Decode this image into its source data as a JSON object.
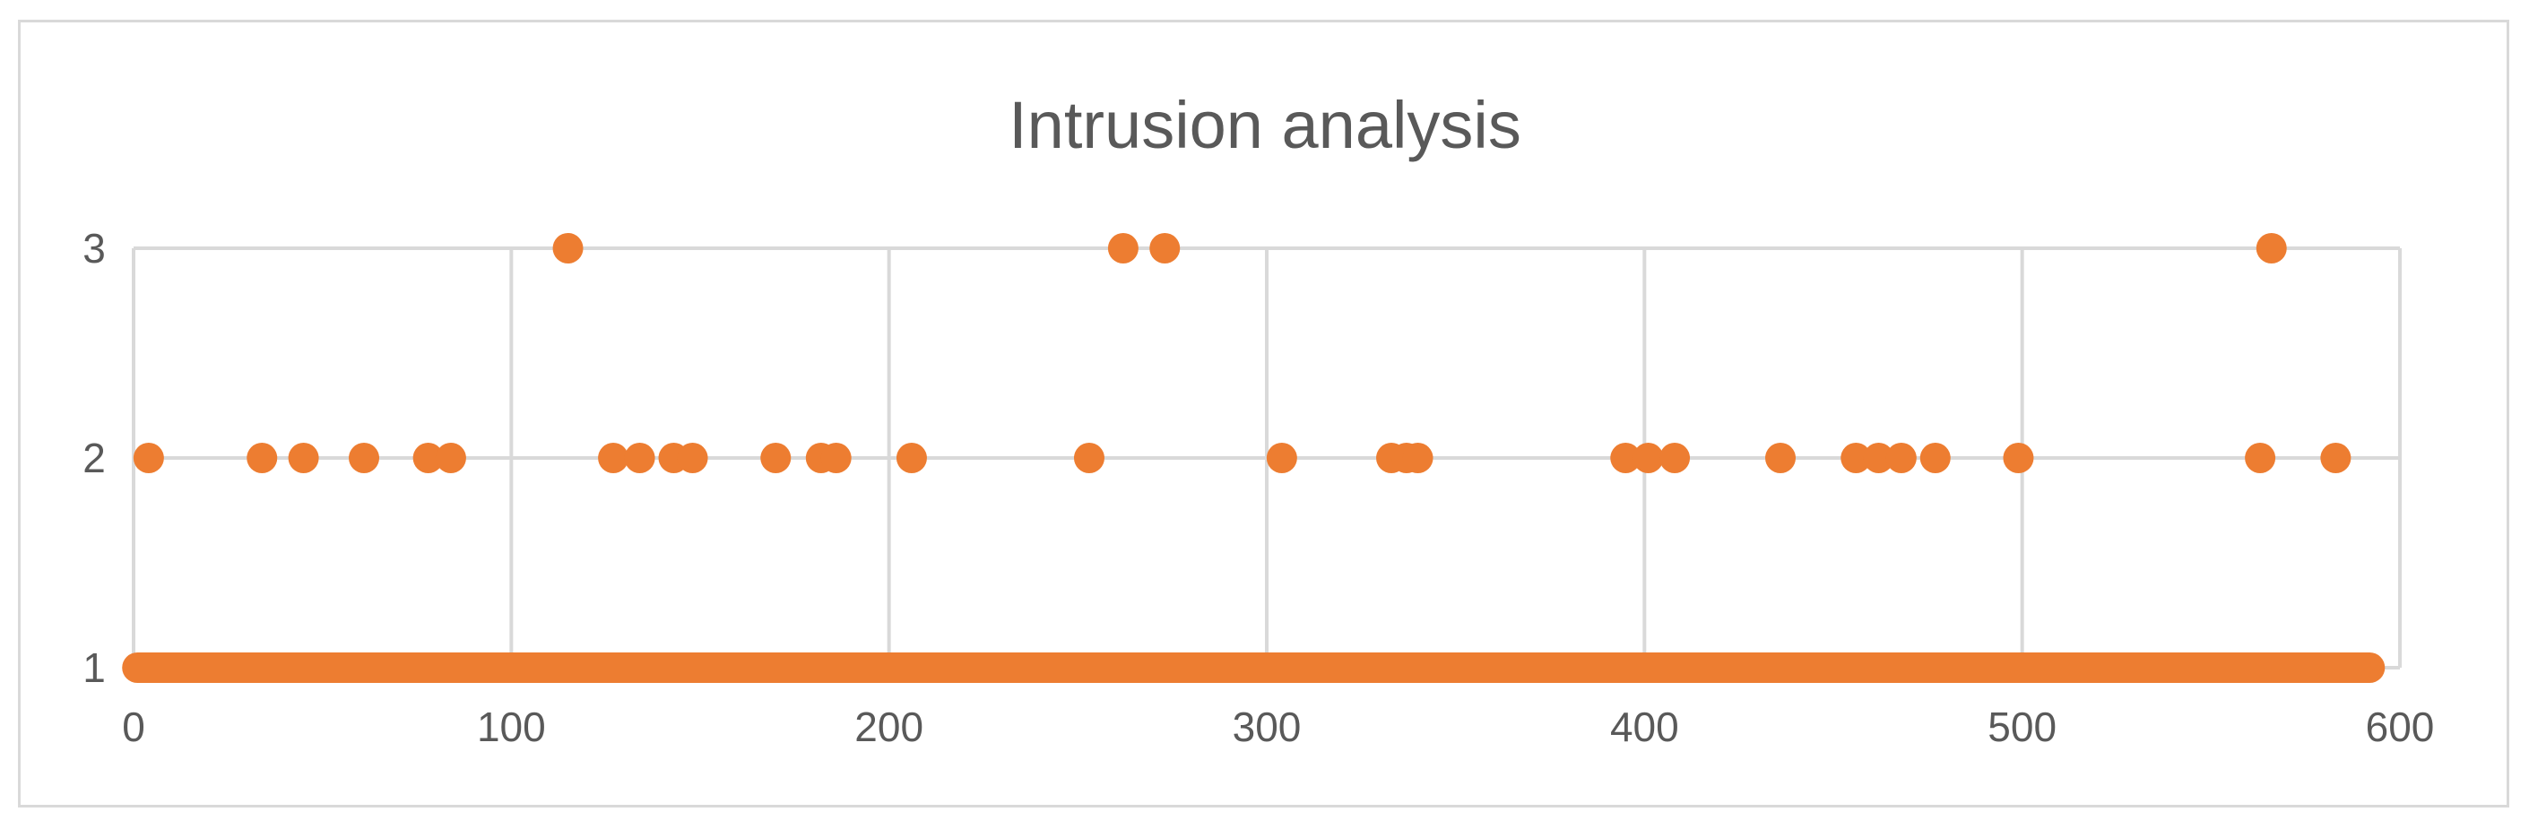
{
  "chart_data": {
    "type": "scatter",
    "title": "Intrusion analysis",
    "xlim": [
      0,
      600
    ],
    "ylim": [
      1,
      3
    ],
    "x_ticks": [
      0,
      100,
      200,
      300,
      400,
      500,
      600
    ],
    "y_ticks": [
      1,
      2,
      3
    ],
    "grid": true,
    "legend": "none",
    "color": "#ED7D31",
    "baseline_run": {
      "y": 1,
      "x_start": 1,
      "x_end": 592,
      "step": 1
    },
    "points": [
      {
        "x": 4,
        "y": 2
      },
      {
        "x": 34,
        "y": 2
      },
      {
        "x": 45,
        "y": 2
      },
      {
        "x": 61,
        "y": 2
      },
      {
        "x": 78,
        "y": 2
      },
      {
        "x": 84,
        "y": 2
      },
      {
        "x": 115,
        "y": 3
      },
      {
        "x": 127,
        "y": 2
      },
      {
        "x": 134,
        "y": 2
      },
      {
        "x": 143,
        "y": 2
      },
      {
        "x": 148,
        "y": 2
      },
      {
        "x": 170,
        "y": 2
      },
      {
        "x": 182,
        "y": 2
      },
      {
        "x": 186,
        "y": 2
      },
      {
        "x": 206,
        "y": 2
      },
      {
        "x": 253,
        "y": 2
      },
      {
        "x": 262,
        "y": 3
      },
      {
        "x": 273,
        "y": 3
      },
      {
        "x": 304,
        "y": 2
      },
      {
        "x": 333,
        "y": 2
      },
      {
        "x": 337,
        "y": 2
      },
      {
        "x": 340,
        "y": 2
      },
      {
        "x": 395,
        "y": 2
      },
      {
        "x": 401,
        "y": 2
      },
      {
        "x": 408,
        "y": 2
      },
      {
        "x": 436,
        "y": 2
      },
      {
        "x": 456,
        "y": 2
      },
      {
        "x": 462,
        "y": 2
      },
      {
        "x": 468,
        "y": 2
      },
      {
        "x": 477,
        "y": 2
      },
      {
        "x": 499,
        "y": 2
      },
      {
        "x": 563,
        "y": 2
      },
      {
        "x": 566,
        "y": 3
      },
      {
        "x": 583,
        "y": 2
      }
    ]
  }
}
